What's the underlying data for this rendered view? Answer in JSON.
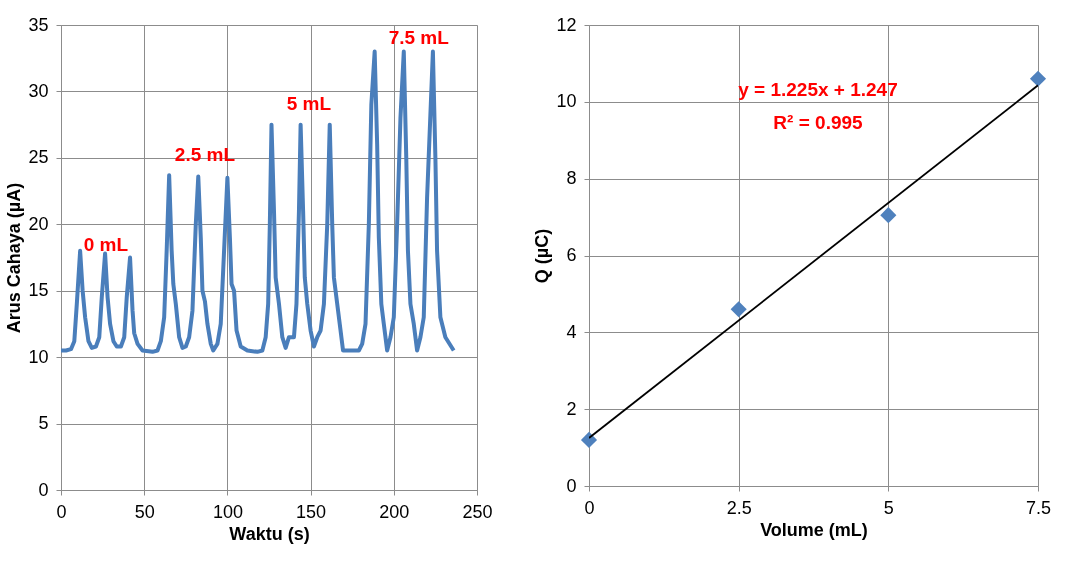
{
  "chart_data": [
    {
      "type": "line",
      "xlabel": "Waktu (s)",
      "ylabel": "Arus Cahaya (µA)",
      "xlim": [
        0,
        250
      ],
      "xticks": [
        0,
        50,
        100,
        150,
        200,
        250
      ],
      "ylim": [
        0,
        35
      ],
      "yticks": [
        0,
        5,
        10,
        15,
        20,
        25,
        30,
        35
      ],
      "grid": true,
      "line_style": "solid",
      "series": [
        {
          "type": "line",
          "color": "#4a7ebb",
          "x": [
            0,
            3,
            6,
            8,
            9.5,
            11.5,
            13,
            14.5,
            16.5,
            18.5,
            21,
            23,
            24.5,
            26.5,
            28,
            29.5,
            31.5,
            33.5,
            36,
            38,
            39.5,
            41.5,
            43,
            44,
            46,
            49,
            55,
            58,
            60,
            62,
            63.5,
            65,
            66.5,
            67.5,
            69,
            71,
            73,
            75,
            77,
            79,
            81,
            82.5,
            84,
            85,
            86.5,
            88,
            90,
            91.5,
            94,
            96,
            98,
            100,
            101.5,
            102.5,
            104,
            105.5,
            108,
            112,
            118,
            121,
            123,
            124.5,
            125.5,
            126.5,
            128,
            129,
            131,
            133,
            135,
            137,
            140,
            141.5,
            143,
            144,
            145.5,
            146.5,
            148,
            150,
            152,
            154,
            156,
            158,
            160,
            161.5,
            163,
            164,
            166,
            168,
            169.5,
            174,
            179,
            181,
            183,
            185,
            186.5,
            188.5,
            190,
            191,
            192.5,
            194,
            196,
            198,
            200,
            202,
            204,
            206,
            207.5,
            208.5,
            210,
            212,
            214,
            216,
            218,
            220,
            223.5,
            225,
            226,
            228,
            231,
            236
          ],
          "values": [
            10.5,
            10.5,
            10.6,
            11.2,
            14,
            18,
            15,
            13,
            11.2,
            10.7,
            10.8,
            11.5,
            14.5,
            17.8,
            14.5,
            12.5,
            11.2,
            10.8,
            10.8,
            11.5,
            14.5,
            17.5,
            13.5,
            11.8,
            11,
            10.5,
            10.4,
            10.5,
            11.2,
            13,
            18,
            23.7,
            18,
            15.5,
            14,
            11.5,
            10.7,
            10.8,
            11.5,
            13.5,
            20,
            23.6,
            19,
            15,
            14.2,
            12.5,
            11,
            10.5,
            11,
            12.5,
            18,
            23.5,
            19,
            15.5,
            15,
            12,
            10.8,
            10.5,
            10.4,
            10.5,
            11.5,
            14,
            20,
            27.5,
            21,
            16,
            14,
            11.5,
            10.7,
            11.5,
            11.5,
            14,
            21,
            27.5,
            21,
            16,
            14,
            12,
            10.8,
            11.5,
            12,
            14,
            20,
            27.5,
            20,
            16,
            14,
            12,
            10.5,
            10.5,
            10.5,
            11,
            12.5,
            20,
            29,
            33,
            26,
            19,
            14,
            12.5,
            10.5,
            11.5,
            13,
            20,
            28,
            33,
            25,
            18,
            14,
            12.5,
            10.5,
            11.5,
            13,
            22,
            33,
            25,
            18,
            13,
            11.5,
            10.5
          ]
        }
      ],
      "annotations": [
        "0 mL",
        "2.5 mL",
        "5 mL",
        "7.5 mL"
      ]
    },
    {
      "type": "scatter",
      "xlabel": "Volume (mL)",
      "ylabel": "Q (µC)",
      "xlim": [
        0,
        7.5
      ],
      "xticks": [
        0,
        2.5,
        5,
        7.5
      ],
      "ylim": [
        0,
        12
      ],
      "yticks": [
        0,
        2,
        4,
        6,
        8,
        10,
        12
      ],
      "grid": true,
      "marker": "diamond",
      "series": [
        {
          "type": "scatter",
          "color": "#4f81bd",
          "x": [
            0,
            2.5,
            5,
            7.5
          ],
          "values": [
            1.2,
            4.6,
            7.05,
            10.6
          ]
        },
        {
          "type": "line",
          "color": "#000000",
          "marker": "none",
          "x": [
            0,
            7.5
          ],
          "values": [
            1.25,
            10.43
          ]
        }
      ],
      "annotations": [
        "y = 1.225x + 1.247",
        "R² = 0.995"
      ]
    }
  ]
}
